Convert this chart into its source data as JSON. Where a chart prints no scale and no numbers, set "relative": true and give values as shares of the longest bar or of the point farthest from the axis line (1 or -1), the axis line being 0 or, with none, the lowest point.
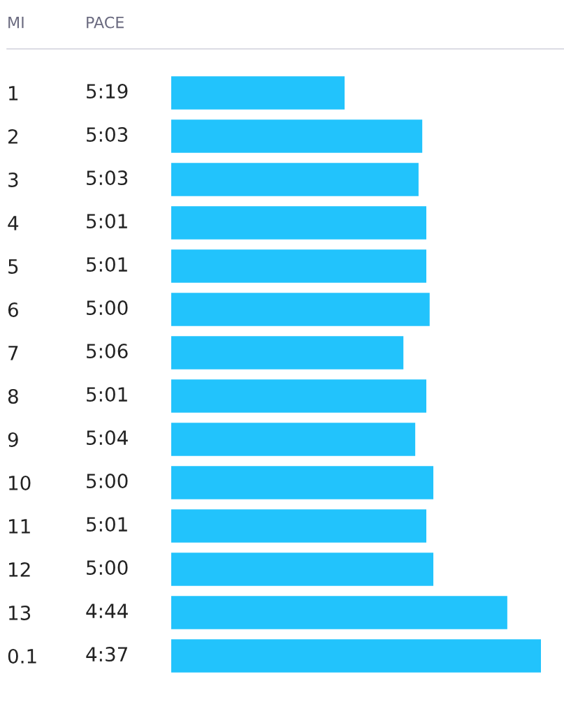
{
  "chart_data": {
    "type": "bar",
    "orientation": "horizontal",
    "relative": true,
    "color": "#22c3fc",
    "categories": [
      "1",
      "2",
      "3",
      "4",
      "5",
      "6",
      "7",
      "8",
      "9",
      "10",
      "11",
      "12",
      "13",
      "0.1"
    ],
    "values": [
      0.469,
      0.679,
      0.669,
      0.69,
      0.69,
      0.699,
      0.628,
      0.69,
      0.66,
      0.709,
      0.69,
      0.709,
      0.909,
      1
    ],
    "annotations": [
      "MI",
      "PACE",
      "5:19",
      "5:03",
      "5:03",
      "5:01",
      "5:01",
      "5:00",
      "5:06",
      "5:01",
      "5:04",
      "5:00",
      "5:01",
      "5:00",
      "4:44",
      "4:37"
    ]
  }
}
